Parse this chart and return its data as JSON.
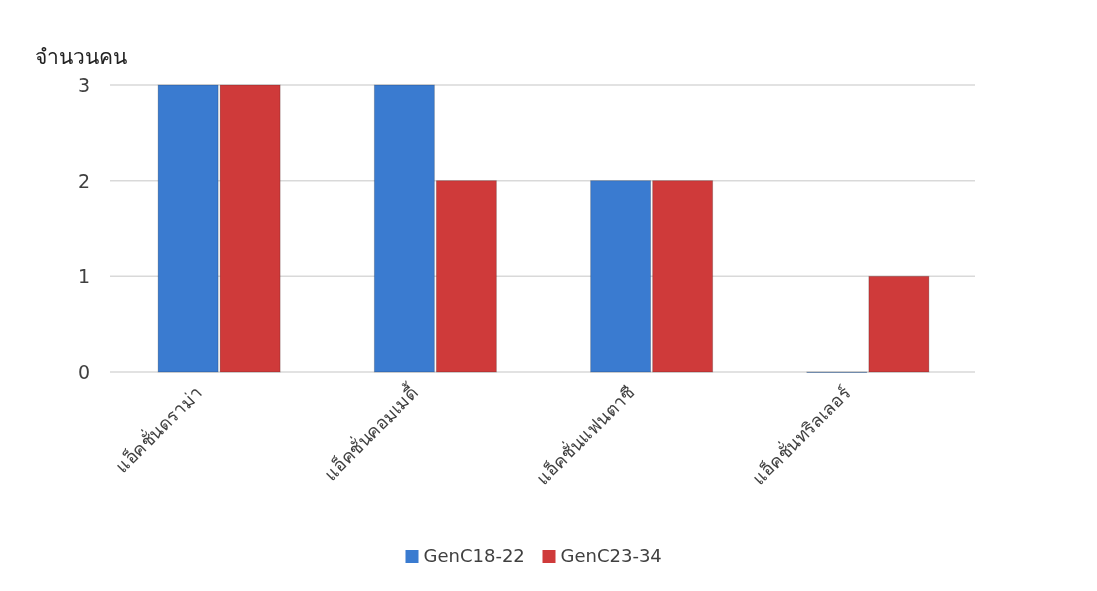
{
  "chart_data": {
    "type": "bar",
    "ylabel": "จำนวนคน",
    "categories": [
      "แอ็คชั่นดราม่า",
      "แอ็คชั่นคอมเมดี้",
      "แอ็คชั่นแฟนตาซี",
      "แอ็คชั่นทริลเลอร์"
    ],
    "series": [
      {
        "name": "GenC18-22",
        "color": "#3a7bd0",
        "values": [
          3,
          3,
          2,
          0
        ]
      },
      {
        "name": "GenC23-34",
        "color": "#cf3a3a",
        "values": [
          3,
          2,
          2,
          1
        ]
      }
    ],
    "ylim": [
      0,
      3
    ],
    "yticks": [
      0,
      1,
      2,
      3
    ],
    "grid": "y",
    "legend": "bottom"
  }
}
